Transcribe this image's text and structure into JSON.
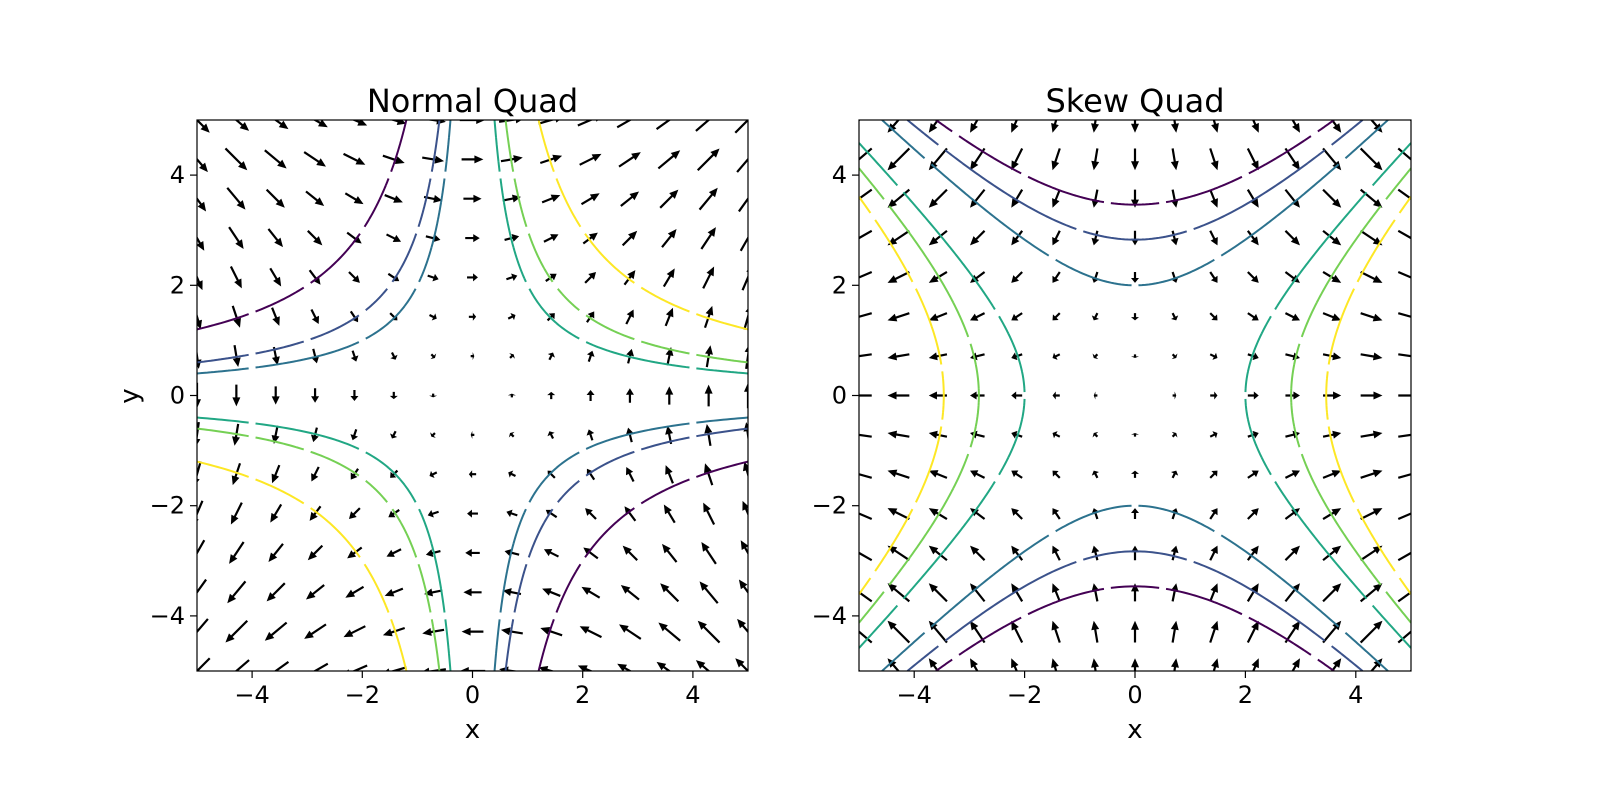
{
  "chart_data": [
    {
      "type": "quiver-contour",
      "title": "Normal Quad",
      "xlabel": "x",
      "ylabel": "y",
      "xlim": [
        -5,
        5
      ],
      "ylim": [
        -5,
        5
      ],
      "xticks": [
        -4,
        -2,
        0,
        2,
        4
      ],
      "yticks": [
        -4,
        -2,
        0,
        2,
        4
      ],
      "xtick_labels": [
        "−4",
        "−2",
        "0",
        "2",
        "4"
      ],
      "ytick_labels": [
        "−4",
        "−2",
        "0",
        "2",
        "4"
      ],
      "field": "x*y",
      "contour_levels": [
        -6,
        -3,
        -2,
        2,
        3,
        6
      ],
      "level_colors": [
        "#440154",
        "#3b528b",
        "#2c728e",
        "#21a784",
        "#75d054",
        "#fde725"
      ],
      "grid": false
    },
    {
      "type": "quiver-contour",
      "title": "Skew Quad",
      "xlabel": "x",
      "ylabel": "",
      "xlim": [
        -5,
        5
      ],
      "ylim": [
        -5,
        5
      ],
      "xticks": [
        -4,
        -2,
        0,
        2,
        4
      ],
      "yticks": [
        -4,
        -2,
        0,
        2,
        4
      ],
      "xtick_labels": [
        "−4",
        "−2",
        "0",
        "2",
        "4"
      ],
      "ytick_labels": [
        "−4",
        "−2",
        "0",
        "2",
        "4"
      ],
      "field": "(x^2 - y^2)/2",
      "contour_levels": [
        -6,
        -4,
        -2,
        2,
        4,
        6
      ],
      "level_colors": [
        "#440154",
        "#3b528b",
        "#2c728e",
        "#21a784",
        "#75d054",
        "#fde725"
      ],
      "grid": false
    }
  ]
}
